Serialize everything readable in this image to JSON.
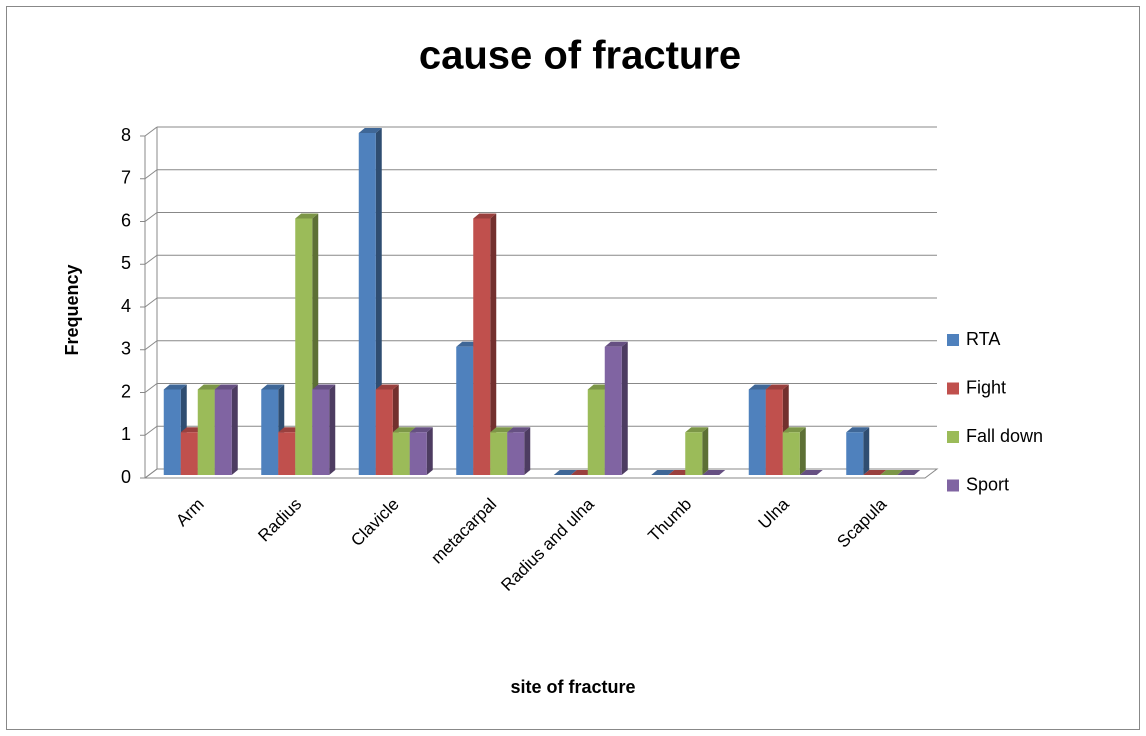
{
  "chart_data": {
    "type": "bar3d",
    "title": "cause of fracture",
    "x_label": "site of fracture",
    "y_label": "Frequency",
    "categories": [
      "Arm",
      "Radius",
      "Clavicle",
      "metacarpal",
      "Radius and ulna",
      "Thumb",
      "Ulna",
      "Scapula"
    ],
    "series": [
      {
        "name": "RTA",
        "color": "#4f81bd",
        "values": [
          2,
          2,
          8,
          3,
          0,
          0,
          2,
          1
        ]
      },
      {
        "name": "Fight",
        "color": "#c0504d",
        "values": [
          1,
          1,
          2,
          6,
          0,
          0,
          2,
          0
        ]
      },
      {
        "name": "Fall down",
        "color": "#9bbb59",
        "values": [
          2,
          6,
          1,
          1,
          2,
          1,
          1,
          0
        ]
      },
      {
        "name": "Sport",
        "color": "#8064a2",
        "values": [
          2,
          2,
          1,
          1,
          3,
          0,
          0,
          0
        ]
      }
    ],
    "ylim": [
      0,
      8
    ],
    "yticks": [
      0,
      1,
      2,
      3,
      4,
      5,
      6,
      7,
      8
    ],
    "grid": true,
    "legend": "right"
  }
}
